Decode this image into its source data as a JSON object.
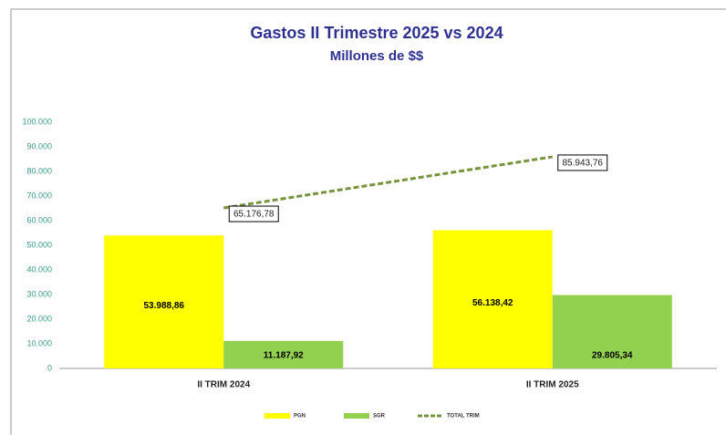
{
  "chart_data": {
    "type": "bar",
    "title": "Gastos II Trimestre 2025 vs 2024",
    "subtitle": "Millones de $$",
    "categories": [
      "II TRIM 2024",
      "II TRIM 2025"
    ],
    "series": [
      {
        "name": "PGN",
        "color": "#ffff00",
        "values": [
          53988.86,
          56138.42
        ],
        "value_labels": [
          "53.988,86",
          "56.138,42"
        ]
      },
      {
        "name": "SGR",
        "color": "#92d050",
        "values": [
          11187.92,
          29805.34
        ],
        "value_labels": [
          "11.187,92",
          "29.805,34"
        ]
      },
      {
        "name": "TOTAL TRIM",
        "type": "line",
        "color": "#77933c",
        "values": [
          65176.78,
          85943.76
        ],
        "value_labels": [
          "65.176,78",
          "85.943,76"
        ]
      }
    ],
    "ylim": [
      0,
      100000
    ],
    "yticks": [
      0,
      {
        "value": 10000,
        "label": "10.000"
      },
      {
        "value": 20000,
        "label": "20.000"
      },
      {
        "value": 30000,
        "label": "30.000"
      },
      {
        "value": 40000,
        "label": "40.000"
      },
      {
        "value": 50000,
        "label": "50.000"
      },
      {
        "value": 60000,
        "label": "60.000"
      },
      {
        "value": 70000,
        "label": "70.000"
      },
      {
        "value": 80000,
        "label": "80.000"
      },
      {
        "value": 90000,
        "label": "90.000"
      },
      {
        "value": 100000,
        "label": "100.000"
      }
    ],
    "grid": false,
    "legend": "bottom"
  }
}
